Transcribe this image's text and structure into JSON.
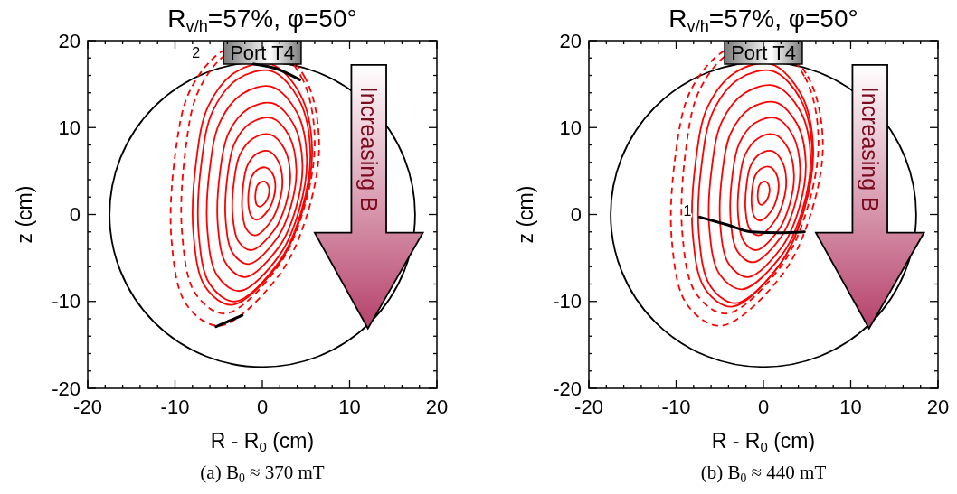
{
  "chart_data": [
    {
      "type": "line",
      "title": "R$_{v/h}$=57%, φ=50°",
      "xlabel": "R - R$_{0}$ (cm)",
      "ylabel": "z (cm)",
      "xlim": [
        -20,
        20
      ],
      "ylim": [
        -20,
        20
      ],
      "xticks": [
        -20,
        {
          "value": -18,
          "label": null
        },
        {
          "value": -16,
          "label": null
        },
        {
          "value": -14,
          "label": null
        },
        {
          "value": -12,
          "label": null
        },
        -10,
        {
          "value": -8,
          "label": null
        },
        {
          "value": -6,
          "label": null
        },
        {
          "value": -4,
          "label": null
        },
        {
          "value": -2,
          "label": null
        },
        0,
        {
          "value": 2,
          "label": null
        },
        {
          "value": 4,
          "label": null
        },
        {
          "value": 6,
          "label": null
        },
        {
          "value": 8,
          "label": null
        },
        10,
        {
          "value": 12,
          "label": null
        },
        {
          "value": 14,
          "label": null
        },
        {
          "value": 16,
          "label": null
        },
        {
          "value": 18,
          "label": null
        },
        20
      ],
      "yticks": [
        -20,
        {
          "value": -18,
          "label": null
        },
        {
          "value": -16,
          "label": null
        },
        {
          "value": -14,
          "label": null
        },
        {
          "value": -12,
          "label": null
        },
        -10,
        {
          "value": -8,
          "label": null
        },
        {
          "value": -6,
          "label": null
        },
        {
          "value": -4,
          "label": null
        },
        {
          "value": -2,
          "label": null
        },
        0,
        {
          "value": 2,
          "label": null
        },
        {
          "value": 4,
          "label": null
        },
        {
          "value": 6,
          "label": null
        },
        {
          "value": 8,
          "label": null
        },
        10,
        {
          "value": 12,
          "label": null
        },
        {
          "value": 14,
          "label": null
        },
        {
          "value": 16,
          "label": null
        },
        {
          "value": 18,
          "label": null
        },
        20
      ],
      "series": [
        {
          "color": "#000000",
          "x": [
            -1.0,
            1.5,
            4.3
          ],
          "values": [
            17.3,
            16.8,
            15.5
          ]
        },
        {
          "color": "#000000",
          "x": [
            -5.3,
            -2.3
          ],
          "values": [
            -12.9,
            -11.6
          ]
        }
      ],
      "annotations": [
        "Port T4",
        "2",
        "Increasing B",
        "(a) B$_{0}$ ≈ 370 mT"
      ]
    },
    {
      "type": "line",
      "title": "R$_{v/h}$=57%, φ=50°",
      "xlabel": "R - R$_{0}$ (cm)",
      "ylabel": "z (cm)",
      "xlim": [
        -20,
        20
      ],
      "ylim": [
        -20,
        20
      ],
      "xticks": [
        -20,
        {
          "value": -18,
          "label": null
        },
        {
          "value": -16,
          "label": null
        },
        {
          "value": -14,
          "label": null
        },
        {
          "value": -12,
          "label": null
        },
        -10,
        {
          "value": -8,
          "label": null
        },
        {
          "value": -6,
          "label": null
        },
        {
          "value": -4,
          "label": null
        },
        {
          "value": -2,
          "label": null
        },
        0,
        {
          "value": 2,
          "label": null
        },
        {
          "value": 4,
          "label": null
        },
        {
          "value": 6,
          "label": null
        },
        {
          "value": 8,
          "label": null
        },
        10,
        {
          "value": 12,
          "label": null
        },
        {
          "value": 14,
          "label": null
        },
        {
          "value": 16,
          "label": null
        },
        {
          "value": 18,
          "label": null
        },
        20
      ],
      "yticks": [
        -20,
        {
          "value": -18,
          "label": null
        },
        {
          "value": -16,
          "label": null
        },
        {
          "value": -14,
          "label": null
        },
        {
          "value": -12,
          "label": null
        },
        -10,
        {
          "value": -8,
          "label": null
        },
        {
          "value": -6,
          "label": null
        },
        {
          "value": -4,
          "label": null
        },
        {
          "value": -2,
          "label": null
        },
        0,
        {
          "value": 2,
          "label": null
        },
        {
          "value": 4,
          "label": null
        },
        {
          "value": 6,
          "label": null
        },
        {
          "value": 8,
          "label": null
        },
        10,
        {
          "value": 12,
          "label": null
        },
        {
          "value": 14,
          "label": null
        },
        {
          "value": 16,
          "label": null
        },
        {
          "value": 18,
          "label": null
        },
        20
      ],
      "series": [
        {
          "color": "#000000",
          "x": [
            -7.3,
            -4.1,
            -1.4,
            1.8,
            4.7
          ],
          "values": [
            -0.3,
            -1.2,
            -2.0,
            -2.1,
            -2.0
          ]
        }
      ],
      "annotations": [
        "Port T4",
        "1",
        "Increasing B",
        "(b) B$_{0}$ ≈ 440 mT"
      ]
    }
  ]
}
